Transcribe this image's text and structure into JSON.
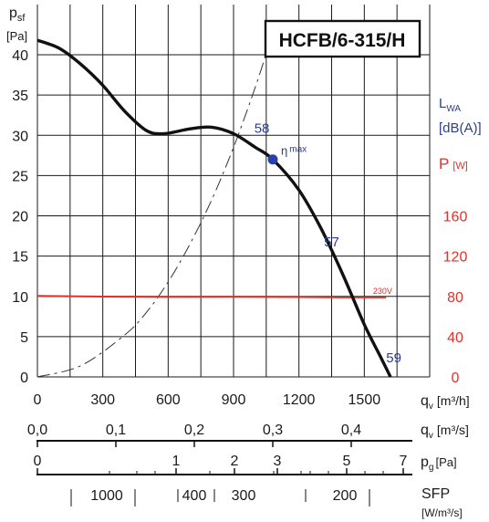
{
  "chart_data": {
    "type": "line",
    "title": "HCFB/6-315/H",
    "y_label_main": "p",
    "y_label_sub": "sf",
    "y_unit": "[Pa]",
    "y_ticks": [
      0,
      5,
      10,
      15,
      20,
      25,
      30,
      35,
      40
    ],
    "ylim": [
      0,
      40
    ],
    "x_label": "q",
    "x_label_sub": "v",
    "x_unit_h": "[m³/h]",
    "x_unit_s": "[m³/s]",
    "x_ticks_h": [
      0,
      300,
      600,
      900,
      1200,
      1500
    ],
    "xlim_h": [
      0,
      1800
    ],
    "x_ticks_s": [
      {
        "value": 0,
        "label": "0,0"
      },
      {
        "value": 0.1,
        "label": "0,1"
      },
      {
        "value": 0.2,
        "label": "0,2"
      },
      {
        "value": 0.3,
        "label": "0,3"
      },
      {
        "value": 0.4,
        "label": "0,4"
      }
    ],
    "pg_label": "p",
    "pg_sub": "g",
    "pg_unit": "[Pa]",
    "pg_ticks": [
      "0",
      "1",
      "2",
      "3",
      "5",
      "7"
    ],
    "sfp_label": "SFP",
    "sfp_unit": "[W/m³/s]",
    "sfp_ticks": [
      "1000",
      "400",
      "300",
      "200"
    ],
    "lwa_label": "L",
    "lwa_sub": "WA",
    "lwa_unit": "[dB(A)]",
    "power_label": "P",
    "power_unit": "[W]",
    "power_ticks": [
      0,
      40,
      80,
      120,
      160
    ],
    "power_axis_max": 160,
    "fan_curve": [
      [
        0,
        41.8
      ],
      [
        100,
        40.8
      ],
      [
        200,
        38.8
      ],
      [
        300,
        36.2
      ],
      [
        400,
        33.0
      ],
      [
        500,
        30.6
      ],
      [
        580,
        30.2
      ],
      [
        700,
        30.8
      ],
      [
        800,
        31.0
      ],
      [
        900,
        30.2
      ],
      [
        1000,
        28.5
      ],
      [
        1080,
        27.0
      ],
      [
        1200,
        23.2
      ],
      [
        1300,
        18.5
      ],
      [
        1400,
        12.8
      ],
      [
        1500,
        6.5
      ],
      [
        1580,
        2.2
      ],
      [
        1620,
        0.0
      ]
    ],
    "system_curve": [
      [
        0,
        0
      ],
      [
        200,
        1.4
      ],
      [
        400,
        5.2
      ],
      [
        500,
        8.0
      ],
      [
        600,
        11.8
      ],
      [
        700,
        16.5
      ],
      [
        800,
        22.0
      ],
      [
        900,
        28.5
      ],
      [
        1000,
        36.0
      ],
      [
        1060,
        41.0
      ]
    ],
    "power_curve": {
      "label": "230V",
      "points": [
        [
          0,
          80.5
        ],
        [
          300,
          79.8
        ],
        [
          600,
          79.4
        ],
        [
          900,
          79.6
        ],
        [
          1200,
          79.3
        ],
        [
          1400,
          79.0
        ],
        [
          1600,
          79.0
        ]
      ]
    },
    "eta_max": {
      "label": "η",
      "sub": "max",
      "x": 1080,
      "y": 27.0
    },
    "noise_labels": [
      {
        "text": "58",
        "x": 1030,
        "y": 30.3
      },
      {
        "text": "57",
        "x": 1350,
        "y": 16.2
      },
      {
        "text": "59",
        "x": 1635,
        "y": 1.8
      }
    ],
    "grid": true
  },
  "colors": {
    "fan_curve": "#111111",
    "system_curve": "#333333",
    "power_curve": "#e2302a",
    "eta_point": "#2b3fa8",
    "noise_text": "#2b3f8f",
    "power_axis": "#e2302a"
  }
}
